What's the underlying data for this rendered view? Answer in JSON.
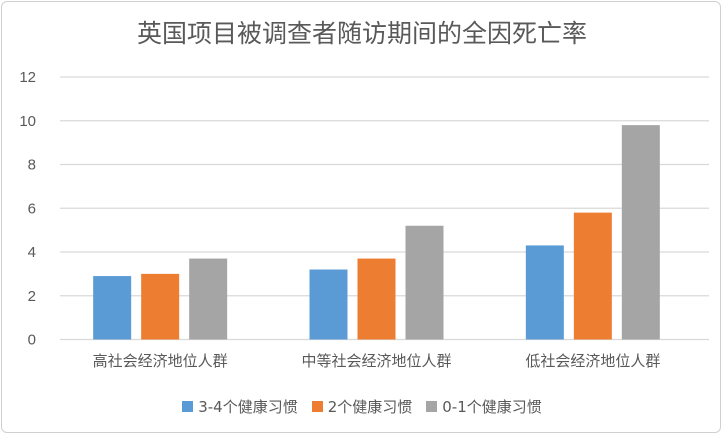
{
  "chart_data": {
    "type": "bar",
    "title": "英国项目被调查者随访期间的全因死亡率",
    "categories": [
      "高社会经济地位人群",
      "中等社会经济地位人群",
      "低社会经济地位人群"
    ],
    "series": [
      {
        "name": "3-4个健康习惯",
        "color": "#5B9BD5",
        "values": [
          2.9,
          3.2,
          4.3
        ]
      },
      {
        "name": "2个健康习惯",
        "color": "#ED7D31",
        "values": [
          3.0,
          3.7,
          5.8
        ]
      },
      {
        "name": "0-1个健康习惯",
        "color": "#A5A5A5",
        "values": [
          3.7,
          5.2,
          9.8
        ]
      }
    ],
    "ylim": [
      0,
      12
    ],
    "yticks": [
      "0",
      "2",
      "4",
      "6",
      "8",
      "10",
      "12"
    ],
    "grid": true,
    "legend_position": "bottom",
    "xlabel": "",
    "ylabel": ""
  }
}
